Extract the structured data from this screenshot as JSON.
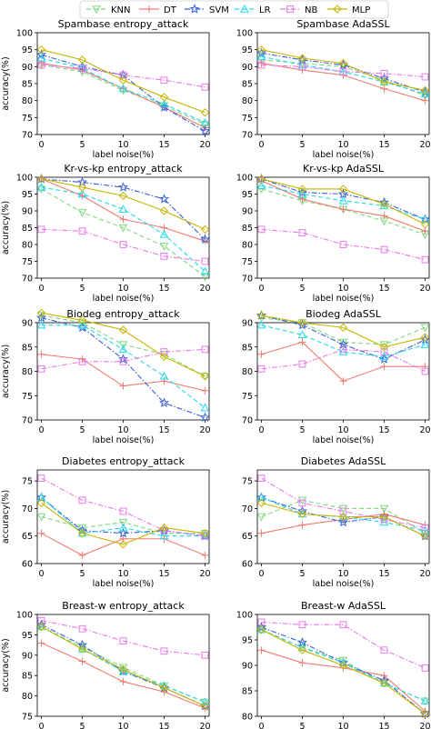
{
  "figure": {
    "legend_placement": "top-center",
    "legend_entries": [
      {
        "name": "KNN",
        "color": "#7fd87f",
        "marker": "triangle-down",
        "dash": "dashed"
      },
      {
        "name": "DT",
        "color": "#f07c72",
        "marker": "plus",
        "dash": "solid"
      },
      {
        "name": "SVM",
        "color": "#3b5fd6",
        "marker": "star",
        "dash": "dashdot"
      },
      {
        "name": "LR",
        "color": "#21d8ec",
        "marker": "triangle-up",
        "dash": "dashed"
      },
      {
        "name": "NB",
        "color": "#e87ae8",
        "marker": "square",
        "dash": "dashdot"
      },
      {
        "name": "MLP",
        "color": "#c8b400",
        "marker": "diamond",
        "dash": "solid"
      }
    ]
  },
  "chart_data": [
    {
      "type": "line",
      "title": "Spambase entropy_attack",
      "xlabel": "label noise(%)",
      "ylabel": "accuracy(%)",
      "x": [
        0,
        5,
        10,
        15,
        20
      ],
      "ylim": [
        70,
        100
      ],
      "yticks": [
        70,
        75,
        80,
        85,
        90,
        95,
        100
      ],
      "grid": false,
      "series": [
        {
          "name": "KNN",
          "values": [
            90.5,
            88.5,
            83.0,
            78.5,
            73.0
          ]
        },
        {
          "name": "DT",
          "values": [
            91.0,
            89.0,
            83.5,
            78.0,
            72.0
          ]
        },
        {
          "name": "SVM",
          "values": [
            93.5,
            90.0,
            87.5,
            78.0,
            71.0
          ]
        },
        {
          "name": "LR",
          "values": [
            92.5,
            89.5,
            83.5,
            79.0,
            73.5
          ]
        },
        {
          "name": "NB",
          "values": [
            90.5,
            89.5,
            87.5,
            86.0,
            84.0
          ]
        },
        {
          "name": "MLP",
          "values": [
            95.0,
            92.0,
            86.0,
            81.0,
            76.5
          ]
        }
      ]
    },
    {
      "type": "line",
      "title": "Spambase AdaSSL",
      "xlabel": "label noise(%)",
      "ylabel": "",
      "x": [
        0,
        5,
        10,
        15,
        20
      ],
      "ylim": [
        70,
        100
      ],
      "yticks": [
        70,
        75,
        80,
        85,
        90,
        95,
        100
      ],
      "grid": false,
      "series": [
        {
          "name": "KNN",
          "values": [
            92.0,
            91.0,
            90.0,
            86.0,
            81.5
          ]
        },
        {
          "name": "DT",
          "values": [
            91.0,
            89.0,
            87.5,
            83.5,
            80.0
          ]
        },
        {
          "name": "SVM",
          "values": [
            94.0,
            92.0,
            90.5,
            86.5,
            82.5
          ]
        },
        {
          "name": "LR",
          "values": [
            93.0,
            90.5,
            88.5,
            85.5,
            82.0
          ]
        },
        {
          "name": "NB",
          "values": [
            90.5,
            90.0,
            88.5,
            88.0,
            87.0
          ]
        },
        {
          "name": "MLP",
          "values": [
            95.0,
            92.5,
            91.0,
            85.5,
            83.0
          ]
        }
      ]
    },
    {
      "type": "line",
      "title": "Kr-vs-kp entropy_attack",
      "xlabel": "label noise(%)",
      "ylabel": "accuracy(%)",
      "x": [
        0,
        5,
        10,
        15,
        20
      ],
      "ylim": [
        70,
        100
      ],
      "yticks": [
        70,
        75,
        80,
        85,
        90,
        95,
        100
      ],
      "grid": false,
      "series": [
        {
          "name": "KNN",
          "values": [
            96.5,
            89.5,
            85.0,
            79.5,
            70.5
          ]
        },
        {
          "name": "DT",
          "values": [
            99.5,
            94.5,
            87.5,
            85.0,
            81.0
          ]
        },
        {
          "name": "SVM",
          "values": [
            99.5,
            98.5,
            97.0,
            93.5,
            81.5
          ]
        },
        {
          "name": "LR",
          "values": [
            97.0,
            95.0,
            90.5,
            83.0,
            72.0
          ]
        },
        {
          "name": "NB",
          "values": [
            84.5,
            84.0,
            80.0,
            76.5,
            75.0
          ]
        },
        {
          "name": "MLP",
          "values": [
            99.5,
            97.0,
            94.5,
            90.0,
            84.5
          ]
        }
      ]
    },
    {
      "type": "line",
      "title": "Kr-vs-kp AdaSSL",
      "xlabel": "label noise(%)",
      "ylabel": "",
      "x": [
        0,
        5,
        10,
        15,
        20
      ],
      "ylim": [
        70,
        100
      ],
      "yticks": [
        70,
        75,
        80,
        85,
        90,
        95,
        100
      ],
      "grid": false,
      "series": [
        {
          "name": "KNN",
          "values": [
            96.5,
            93.0,
            90.5,
            87.0,
            83.0
          ]
        },
        {
          "name": "DT",
          "values": [
            99.0,
            93.5,
            90.5,
            88.5,
            84.0
          ]
        },
        {
          "name": "SVM",
          "values": [
            99.5,
            95.5,
            95.0,
            92.5,
            87.5
          ]
        },
        {
          "name": "LR",
          "values": [
            97.5,
            95.0,
            93.0,
            91.5,
            87.5
          ]
        },
        {
          "name": "NB",
          "values": [
            84.5,
            83.5,
            80.0,
            78.5,
            75.5
          ]
        },
        {
          "name": "MLP",
          "values": [
            99.5,
            96.5,
            96.5,
            92.0,
            86.0
          ]
        }
      ]
    },
    {
      "type": "line",
      "title": "Biodeg entropy_attack",
      "xlabel": "label noise(%)",
      "ylabel": "accuracy(%)",
      "x": [
        0,
        5,
        10,
        15,
        20
      ],
      "ylim": [
        70,
        90
      ],
      "yticks": [
        70,
        75,
        80,
        85,
        90
      ],
      "grid": false,
      "series": [
        {
          "name": "KNN",
          "values": [
            91.5,
            90.0,
            85.5,
            83.5,
            79.0
          ]
        },
        {
          "name": "DT",
          "values": [
            83.5,
            82.5,
            77.0,
            78.0,
            76.0
          ]
        },
        {
          "name": "SVM",
          "values": [
            91.0,
            89.0,
            82.5,
            73.5,
            70.5
          ]
        },
        {
          "name": "LR",
          "values": [
            89.5,
            89.5,
            84.5,
            79.0,
            72.5
          ]
        },
        {
          "name": "NB",
          "values": [
            80.5,
            82.0,
            82.0,
            84.0,
            84.5
          ]
        },
        {
          "name": "MLP",
          "values": [
            92.0,
            90.5,
            88.5,
            83.0,
            79.0
          ]
        }
      ]
    },
    {
      "type": "line",
      "title": "Biodeg AdaSSL",
      "xlabel": "label noise(%)",
      "ylabel": "",
      "x": [
        0,
        5,
        10,
        15,
        20
      ],
      "ylim": [
        70,
        90
      ],
      "yticks": [
        70,
        75,
        80,
        85,
        90
      ],
      "grid": false,
      "series": [
        {
          "name": "KNN",
          "values": [
            91.0,
            90.0,
            86.0,
            85.5,
            89.0
          ]
        },
        {
          "name": "DT",
          "values": [
            83.5,
            86.0,
            78.0,
            81.0,
            81.0
          ]
        },
        {
          "name": "SVM",
          "values": [
            91.5,
            89.5,
            85.5,
            82.5,
            86.5
          ]
        },
        {
          "name": "LR",
          "values": [
            89.5,
            87.5,
            84.0,
            83.0,
            85.5
          ]
        },
        {
          "name": "NB",
          "values": [
            80.5,
            81.5,
            84.5,
            84.0,
            80.0
          ]
        },
        {
          "name": "MLP",
          "values": [
            91.5,
            90.0,
            89.0,
            85.0,
            87.0
          ]
        }
      ]
    },
    {
      "type": "line",
      "title": "Diabetes entropy_attack",
      "xlabel": "label noise(%)",
      "ylabel": "accuracy(%)",
      "x": [
        0,
        5,
        10,
        15,
        20
      ],
      "ylim": [
        60,
        77
      ],
      "yticks": [
        60,
        65,
        70,
        75
      ],
      "grid": false,
      "series": [
        {
          "name": "KNN",
          "values": [
            68.5,
            66.5,
            67.5,
            65.5,
            65.5
          ]
        },
        {
          "name": "DT",
          "values": [
            65.5,
            61.5,
            64.5,
            64.5,
            61.5
          ]
        },
        {
          "name": "SVM",
          "values": [
            72.0,
            66.0,
            65.5,
            66.0,
            65.0
          ]
        },
        {
          "name": "LR",
          "values": [
            72.0,
            65.5,
            66.5,
            65.0,
            65.0
          ]
        },
        {
          "name": "NB",
          "values": [
            75.5,
            71.5,
            69.5,
            66.0,
            65.0
          ]
        },
        {
          "name": "MLP",
          "values": [
            71.0,
            65.5,
            63.5,
            66.5,
            65.5
          ]
        }
      ]
    },
    {
      "type": "line",
      "title": "Diabetes AdaSSL",
      "xlabel": "label noise(%)",
      "ylabel": "",
      "x": [
        0,
        5,
        10,
        15,
        20
      ],
      "ylim": [
        60,
        77
      ],
      "yticks": [
        60,
        65,
        70,
        75
      ],
      "grid": false,
      "series": [
        {
          "name": "KNN",
          "values": [
            68.5,
            71.5,
            70.0,
            70.0,
            65.5
          ]
        },
        {
          "name": "DT",
          "values": [
            65.5,
            67.0,
            68.0,
            69.0,
            67.0
          ]
        },
        {
          "name": "SVM",
          "values": [
            72.0,
            69.5,
            67.5,
            68.5,
            65.0
          ]
        },
        {
          "name": "LR",
          "values": [
            72.0,
            69.0,
            68.5,
            67.5,
            66.0
          ]
        },
        {
          "name": "NB",
          "values": [
            75.5,
            71.0,
            69.5,
            68.0,
            66.5
          ]
        },
        {
          "name": "MLP",
          "values": [
            71.0,
            69.0,
            68.5,
            68.5,
            65.0
          ]
        }
      ]
    },
    {
      "type": "line",
      "title": "Breast-w entropy_attack",
      "xlabel": "label noise(%)",
      "ylabel": "accuracy(%)",
      "x": [
        0,
        5,
        10,
        15,
        20
      ],
      "ylim": [
        75,
        100
      ],
      "yticks": [
        75,
        80,
        85,
        90,
        95,
        100
      ],
      "grid": false,
      "series": [
        {
          "name": "KNN",
          "values": [
            97.0,
            92.0,
            87.0,
            82.5,
            78.5
          ]
        },
        {
          "name": "DT",
          "values": [
            93.0,
            88.5,
            83.5,
            81.0,
            77.0
          ]
        },
        {
          "name": "SVM",
          "values": [
            97.5,
            92.5,
            86.0,
            82.0,
            77.5
          ]
        },
        {
          "name": "LR",
          "values": [
            97.0,
            91.5,
            86.0,
            82.5,
            78.5
          ]
        },
        {
          "name": "NB",
          "values": [
            98.5,
            96.5,
            93.5,
            91.0,
            90.0
          ]
        },
        {
          "name": "MLP",
          "values": [
            97.0,
            91.5,
            86.5,
            82.0,
            77.5
          ]
        }
      ]
    },
    {
      "type": "line",
      "title": "Breast-w AdaSSL",
      "xlabel": "label noise(%)",
      "ylabel": "",
      "x": [
        0,
        5,
        10,
        15,
        20
      ],
      "ylim": [
        80,
        100
      ],
      "yticks": [
        80,
        85,
        90,
        95,
        100
      ],
      "grid": false,
      "series": [
        {
          "name": "KNN",
          "values": [
            97.0,
            93.5,
            91.0,
            86.5,
            83.0
          ]
        },
        {
          "name": "DT",
          "values": [
            93.0,
            90.5,
            89.5,
            88.0,
            81.0
          ]
        },
        {
          "name": "SVM",
          "values": [
            97.5,
            94.5,
            90.5,
            87.0,
            80.5
          ]
        },
        {
          "name": "LR",
          "values": [
            97.0,
            93.5,
            90.5,
            86.5,
            83.0
          ]
        },
        {
          "name": "NB",
          "values": [
            98.5,
            98.0,
            98.0,
            93.0,
            89.5
          ]
        },
        {
          "name": "MLP",
          "values": [
            97.0,
            93.0,
            90.0,
            86.5,
            80.5
          ]
        }
      ]
    }
  ]
}
